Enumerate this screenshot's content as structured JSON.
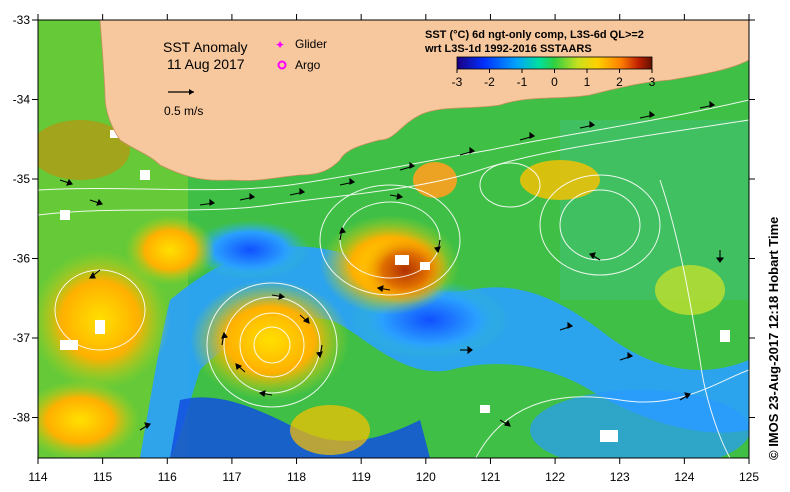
{
  "title": "SST Anomaly",
  "date": "11 Aug 2017",
  "legend_markers": {
    "glider": {
      "label": "Glider",
      "color": "#ff00ff"
    },
    "argo": {
      "label": "Argo",
      "color": "#ff00ff"
    }
  },
  "velocity_scale_label": "0.5 m/s",
  "colorbar": {
    "title_line1": "SST (°C) 6d ngt-only comp, L3S-6d QL>=2",
    "title_line2": "wrt L3S-1d 1992-2016 SSTAARS",
    "ticks": [
      "-3",
      "-2",
      "-1",
      "0",
      "1",
      "2",
      "3"
    ],
    "range": [
      -3,
      3
    ]
  },
  "axes": {
    "x_ticks": [
      "114",
      "115",
      "116",
      "117",
      "118",
      "119",
      "120",
      "121",
      "122",
      "123",
      "124",
      "125"
    ],
    "y_ticks": [
      "-33",
      "-34",
      "-35",
      "-36",
      "-37",
      "-38"
    ]
  },
  "credit": "© IMOS 23-Aug-2017 12:18 Hobart Time",
  "colors": {
    "land": "#f7c89d",
    "ocean_base": "#3fbf45",
    "warm": "#ffb000",
    "cool": "#2f7fff",
    "contour": "#ffffff"
  }
}
